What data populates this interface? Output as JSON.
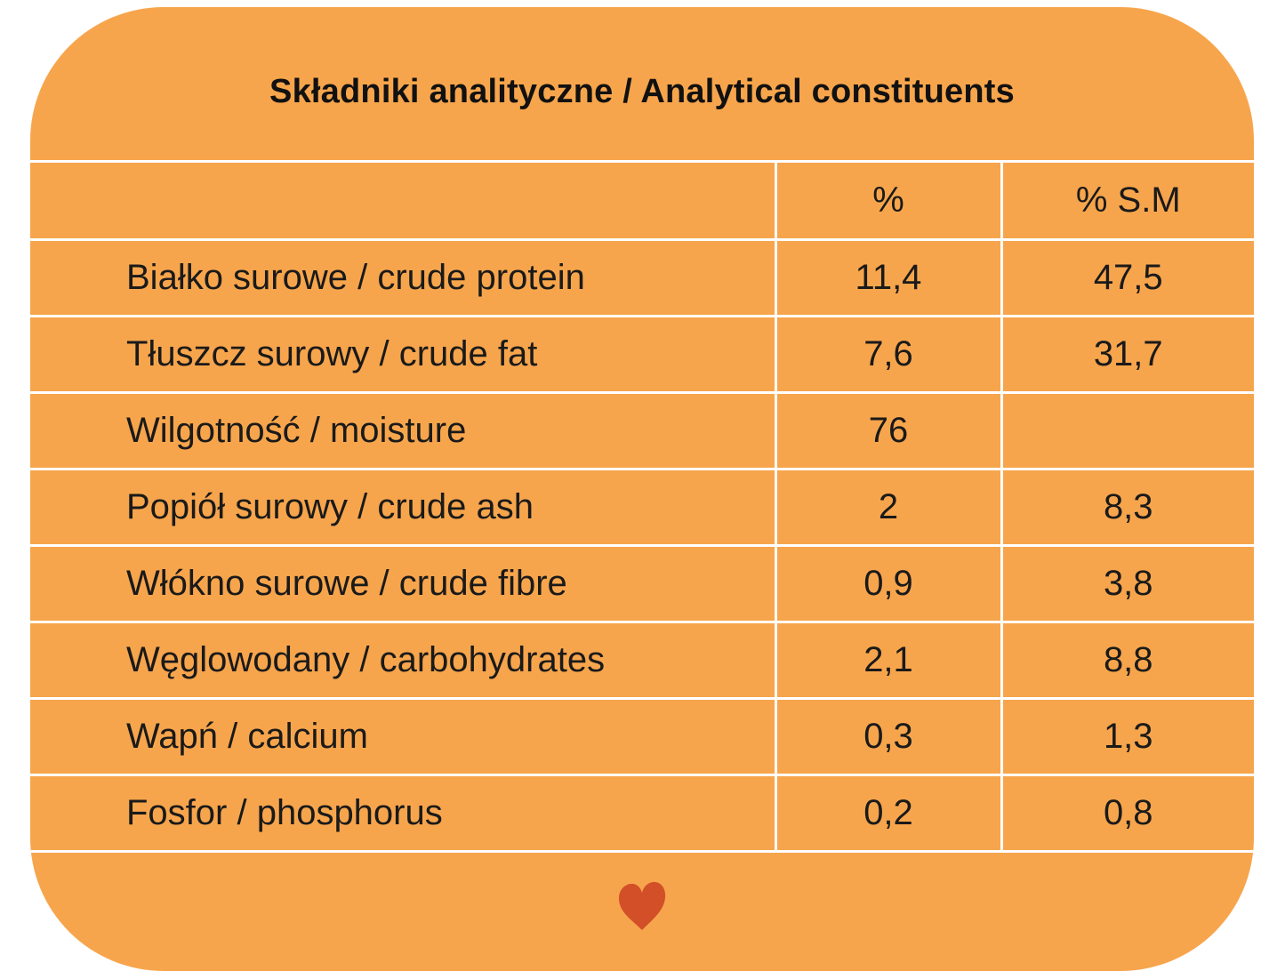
{
  "title": "Składniki analityczne / Analytical constituents",
  "table": {
    "headers": [
      "",
      "%",
      "% S.M"
    ],
    "rows": [
      {
        "name": "Białko surowe / crude protein",
        "pct": "11,4",
        "dm": "47,5"
      },
      {
        "name": "Tłuszcz surowy / crude fat",
        "pct": "7,6",
        "dm": "31,7"
      },
      {
        "name": "Wilgotność / moisture",
        "pct": "76",
        "dm": ""
      },
      {
        "name": "Popiół surowy / crude ash",
        "pct": "2",
        "dm": "8,3"
      },
      {
        "name": "Włókno surowe / crude fibre",
        "pct": "0,9",
        "dm": "3,8"
      },
      {
        "name": "Węglowodany / carbohydrates",
        "pct": "2,1",
        "dm": "8,8"
      },
      {
        "name": "Wapń / calcium",
        "pct": "0,3",
        "dm": "1,3"
      },
      {
        "name": "Fosfor / phosphorus",
        "pct": "0,2",
        "dm": "0,8"
      }
    ]
  },
  "icons": {
    "footer": "heart-icon"
  },
  "colors": {
    "card": "#F7A54C",
    "heart": "#D24F28",
    "lines": "#FFFFFF",
    "text": "#1A1A1A"
  }
}
